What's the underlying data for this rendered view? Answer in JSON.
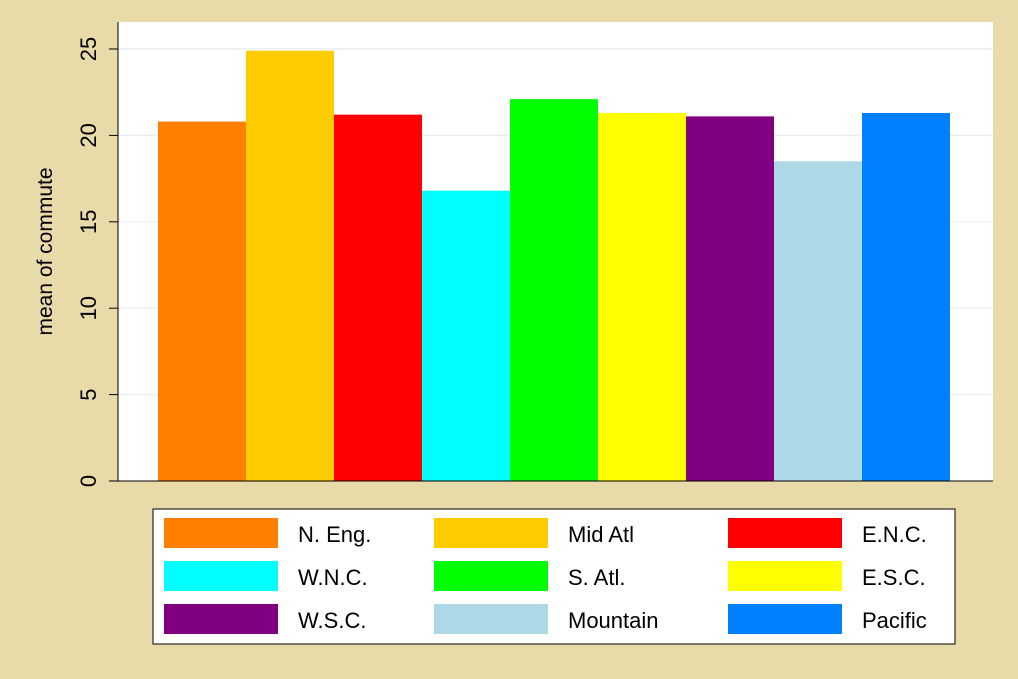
{
  "chart_data": {
    "type": "bar",
    "title": "",
    "xlabel": "",
    "ylabel": "mean of commute",
    "ylim": [
      0,
      25
    ],
    "yticks": [
      0,
      5,
      10,
      15,
      20,
      25
    ],
    "grid": true,
    "legend_position": "bottom",
    "series": [
      {
        "name": "N. Eng.",
        "value": 20.8,
        "color": "#FF7F00"
      },
      {
        "name": "Mid Atl",
        "value": 24.9,
        "color": "#FFCC00"
      },
      {
        "name": "E.N.C.",
        "value": 21.2,
        "color": "#FF0000"
      },
      {
        "name": "W.N.C.",
        "value": 16.8,
        "color": "#00FFFF"
      },
      {
        "name": "S. Atl.",
        "value": 22.1,
        "color": "#00FF00"
      },
      {
        "name": "E.S.C.",
        "value": 21.3,
        "color": "#FFFF00"
      },
      {
        "name": "W.S.C.",
        "value": 21.1,
        "color": "#800080"
      },
      {
        "name": "Mountain",
        "value": 18.5,
        "color": "#ADD8E6"
      },
      {
        "name": "Pacific",
        "value": 21.3,
        "color": "#0080FF"
      }
    ]
  },
  "colors": {
    "page_background": "#E8DAA9",
    "plot_background": "#FFFFFF",
    "gridline": "#E6ECEF",
    "axis": "#000000"
  }
}
